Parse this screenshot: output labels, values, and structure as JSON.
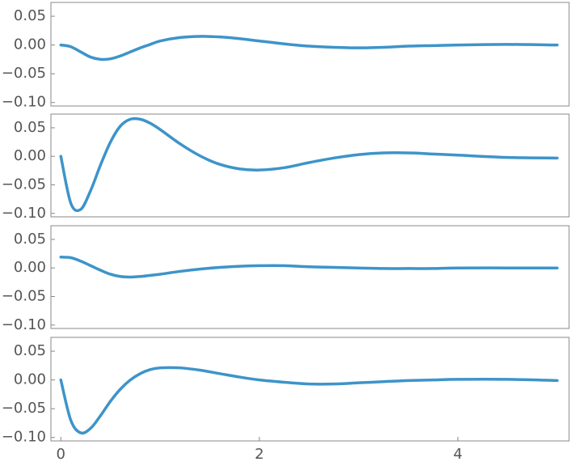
{
  "chart_data": [
    {
      "type": "line",
      "color": "#3d94c9",
      "x": [
        0,
        0.1,
        0.2,
        0.3,
        0.4,
        0.5,
        0.6,
        0.7,
        0.8,
        0.9,
        1.0,
        1.2,
        1.4,
        1.6,
        1.8,
        2.0,
        2.25,
        2.5,
        2.75,
        3.0,
        3.25,
        3.5,
        3.75,
        4.0,
        4.5,
        5.0
      ],
      "values": [
        0,
        -0.003,
        -0.012,
        -0.021,
        -0.025,
        -0.024,
        -0.019,
        -0.012,
        -0.005,
        0.001,
        0.007,
        0.013,
        0.015,
        0.014,
        0.011,
        0.007,
        0.002,
        -0.002,
        -0.004,
        -0.005,
        -0.004,
        -0.002,
        -0.001,
        0.0,
        0.001,
        0.0
      ],
      "xlim": [
        -0.1,
        5.12
      ],
      "ylim": [
        -0.106,
        0.074
      ],
      "yticks": [
        0.05,
        {
          "value": 0,
          "label": "0.00"
        },
        {
          "value": -0.05,
          "label": "−0.05"
        },
        {
          "value": -0.1,
          "label": "−0.10"
        }
      ]
    },
    {
      "type": "line",
      "color": "#3d94c9",
      "x": [
        0,
        0.1,
        0.2,
        0.3,
        0.4,
        0.5,
        0.6,
        0.7,
        0.8,
        0.9,
        1.0,
        1.2,
        1.4,
        1.6,
        1.8,
        2.0,
        2.25,
        2.5,
        2.75,
        3.0,
        3.25,
        3.5,
        3.75,
        4.0,
        4.5,
        5.0
      ],
      "values": [
        0,
        -0.082,
        -0.093,
        -0.06,
        -0.015,
        0.025,
        0.053,
        0.065,
        0.065,
        0.058,
        0.047,
        0.022,
        0.001,
        -0.014,
        -0.022,
        -0.024,
        -0.02,
        -0.011,
        -0.003,
        0.003,
        0.006,
        0.006,
        0.004,
        0.002,
        -0.002,
        -0.003
      ],
      "xlim": [
        -0.1,
        5.12
      ],
      "ylim": [
        -0.106,
        0.074
      ],
      "yticks": [
        0.05,
        {
          "value": 0,
          "label": "0.00"
        },
        {
          "value": -0.05,
          "label": "−0.05"
        },
        {
          "value": -0.1,
          "label": "−0.10"
        }
      ]
    },
    {
      "type": "line",
      "color": "#3d94c9",
      "x": [
        0,
        0.1,
        0.2,
        0.3,
        0.4,
        0.5,
        0.6,
        0.7,
        0.8,
        0.9,
        1.0,
        1.2,
        1.4,
        1.6,
        1.8,
        2.0,
        2.25,
        2.5,
        2.75,
        3.0,
        3.25,
        3.5,
        3.75,
        4.0,
        4.5,
        5.0
      ],
      "values": [
        0.019,
        0.018,
        0.012,
        0.004,
        -0.004,
        -0.011,
        -0.015,
        -0.016,
        -0.015,
        -0.013,
        -0.011,
        -0.006,
        -0.002,
        0.001,
        0.003,
        0.004,
        0.004,
        0.002,
        0.001,
        0.0,
        -0.001,
        -0.001,
        -0.001,
        0.0,
        0.0,
        0.0
      ],
      "xlim": [
        -0.1,
        5.12
      ],
      "ylim": [
        -0.106,
        0.074
      ],
      "yticks": [
        0.05,
        {
          "value": 0,
          "label": "0.00"
        },
        {
          "value": -0.05,
          "label": "−0.05"
        },
        {
          "value": -0.1,
          "label": "−0.10"
        }
      ]
    },
    {
      "type": "line",
      "color": "#3d94c9",
      "x": [
        0,
        0.1,
        0.2,
        0.3,
        0.4,
        0.5,
        0.6,
        0.7,
        0.8,
        0.9,
        1.0,
        1.2,
        1.4,
        1.6,
        1.8,
        2.0,
        2.25,
        2.5,
        2.75,
        3.0,
        3.25,
        3.5,
        3.75,
        4.0,
        4.5,
        5.0
      ],
      "values": [
        0,
        -0.07,
        -0.092,
        -0.084,
        -0.062,
        -0.037,
        -0.016,
        0.0,
        0.011,
        0.018,
        0.021,
        0.021,
        0.017,
        0.011,
        0.005,
        0.0,
        -0.004,
        -0.007,
        -0.007,
        -0.005,
        -0.003,
        -0.001,
        0.0,
        0.001,
        0.001,
        -0.001
      ],
      "xlim": [
        -0.1,
        5.12
      ],
      "ylim": [
        -0.106,
        0.074
      ],
      "yticks": [
        0.05,
        {
          "value": 0,
          "label": "0.00"
        },
        {
          "value": -0.05,
          "label": "−0.05"
        },
        {
          "value": -0.1,
          "label": "−0.10"
        }
      ],
      "xticks": [
        0,
        2,
        4
      ]
    }
  ]
}
